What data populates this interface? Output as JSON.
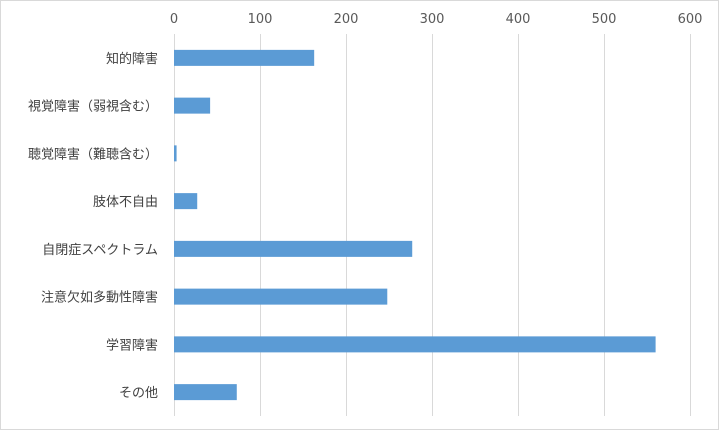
{
  "chart_data": {
    "type": "bar",
    "orientation": "horizontal",
    "categories": [
      "知的障害",
      "視覚障害（弱視含む）",
      "聴覚障害（難聴含む）",
      "肢体不自由",
      "自閉症スペクトラム",
      "注意欠如多動性障害",
      "学習障害",
      "その他"
    ],
    "values": [
      163,
      42,
      3,
      27,
      277,
      248,
      560,
      73
    ],
    "xlim": [
      0,
      600
    ],
    "xticks": [
      0,
      100,
      200,
      300,
      400,
      500,
      600
    ],
    "x_axis_position": "top",
    "grid": true,
    "legend": "none",
    "bar_color": "#5b9bd5",
    "grid_color": "#d9d9d9"
  }
}
